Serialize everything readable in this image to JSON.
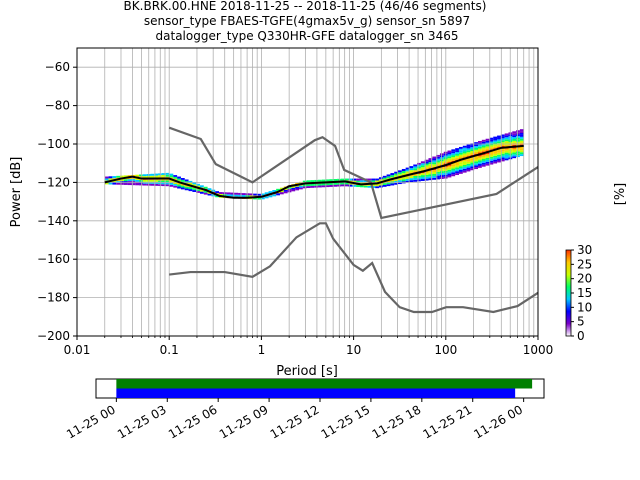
{
  "chart_data": [
    {
      "type": "heatmap",
      "title_lines": [
        "BK.BRK.00.HNE   2018-11-25 -- 2018-11-25  (46/46 segments)",
        "sensor_type FBAES-TGFE(4gmax5v_g) sensor_sn 5897",
        "datalogger_type Q330HR-GFE datalogger_sn 3465"
      ],
      "xlabel": "Period [s]",
      "ylabel": "Power [dB]",
      "x_scale": "log",
      "xlim": [
        0.01,
        1000
      ],
      "ylim": [
        -200,
        -50
      ],
      "x_ticks": [
        {
          "value": 0.01,
          "label": "0.01"
        },
        {
          "value": 0.1,
          "label": "0.1"
        },
        {
          "value": 1,
          "label": "1"
        },
        {
          "value": 10,
          "label": "10"
        },
        {
          "value": 100,
          "label": "100"
        },
        {
          "value": 1000,
          "label": "1000"
        }
      ],
      "y_ticks": [
        {
          "value": -60,
          "label": "−60"
        },
        {
          "value": -80,
          "label": "−80"
        },
        {
          "value": -100,
          "label": "−100"
        },
        {
          "value": -120,
          "label": "−120"
        },
        {
          "value": -140,
          "label": "−140"
        },
        {
          "value": -160,
          "label": "−160"
        },
        {
          "value": -180,
          "label": "−180"
        },
        {
          "value": -200,
          "label": "−200"
        }
      ],
      "grid": true,
      "colorbar": {
        "label": "[%]",
        "range": [
          0,
          30
        ],
        "ticks": [
          {
            "value": 0,
            "label": "0"
          },
          {
            "value": 5,
            "label": "5"
          },
          {
            "value": 10,
            "label": "10"
          },
          {
            "value": 15,
            "label": "15"
          },
          {
            "value": 20,
            "label": "20"
          },
          {
            "value": 25,
            "label": "25"
          },
          {
            "value": 30,
            "label": "30"
          }
        ],
        "colors": [
          "#ffffff",
          "#7b00c8",
          "#0000ff",
          "#00c8ff",
          "#00ff64",
          "#c8ff00",
          "#ffc800",
          "#ff3200"
        ]
      },
      "noise_models": [
        {
          "points": [
            [
              0.1,
              -91.5
            ],
            [
              0.22,
              -97.4
            ],
            [
              0.32,
              -110.5
            ],
            [
              0.8,
              -120
            ],
            [
              3.8,
              -98
            ],
            [
              4.6,
              -96.5
            ],
            [
              6.3,
              -101
            ],
            [
              7.9,
              -113.5
            ],
            [
              15.4,
              -120
            ],
            [
              20,
              -138.5
            ],
            [
              354.8,
              -126
            ],
            [
              1000,
              -112
            ]
          ]
        },
        {
          "points": [
            [
              0.1,
              -168
            ],
            [
              0.17,
              -166.7
            ],
            [
              0.4,
              -166.7
            ],
            [
              0.8,
              -169.2
            ],
            [
              1.24,
              -163.7
            ],
            [
              2.4,
              -148.6
            ],
            [
              4.3,
              -141.3
            ],
            [
              5,
              -141.3
            ],
            [
              6,
              -149.3
            ],
            [
              10,
              -163
            ],
            [
              12.6,
              -166
            ],
            [
              15.9,
              -162
            ],
            [
              21.9,
              -177
            ],
            [
              31.6,
              -185
            ],
            [
              45,
              -187.5
            ],
            [
              70.8,
              -187.5
            ],
            [
              101,
              -185
            ],
            [
              154,
              -185
            ],
            [
              328,
              -187.5
            ],
            [
              600,
              -184.4
            ],
            [
              1000,
              -177.5
            ]
          ]
        }
      ],
      "mode_curve": {
        "points": [
          [
            0.02,
            -120
          ],
          [
            0.03,
            -118
          ],
          [
            0.04,
            -117
          ],
          [
            0.05,
            -118
          ],
          [
            0.07,
            -118
          ],
          [
            0.1,
            -118
          ],
          [
            0.13,
            -120
          ],
          [
            0.18,
            -122
          ],
          [
            0.25,
            -124
          ],
          [
            0.35,
            -127
          ],
          [
            0.5,
            -128
          ],
          [
            0.7,
            -128
          ],
          [
            1,
            -127.5
          ],
          [
            1.5,
            -125
          ],
          [
            2,
            -122
          ],
          [
            3,
            -120.5
          ],
          [
            5,
            -120
          ],
          [
            8,
            -119.5
          ],
          [
            12,
            -121
          ],
          [
            18,
            -120.5
          ],
          [
            25,
            -118.5
          ],
          [
            40,
            -116
          ],
          [
            60,
            -114
          ],
          [
            100,
            -111
          ],
          [
            150,
            -108
          ],
          [
            250,
            -105
          ],
          [
            400,
            -102
          ],
          [
            700,
            -101
          ]
        ]
      },
      "spread_min": [
        [
          0.02,
          -121
        ],
        [
          0.1,
          -122
        ],
        [
          0.35,
          -128
        ],
        [
          1,
          -129
        ],
        [
          3,
          -123
        ],
        [
          8,
          -122
        ],
        [
          18,
          -123
        ],
        [
          40,
          -120
        ],
        [
          100,
          -118
        ],
        [
          250,
          -112
        ],
        [
          700,
          -106
        ]
      ],
      "spread_max": [
        [
          0.02,
          -117
        ],
        [
          0.1,
          -115
        ],
        [
          0.35,
          -125
        ],
        [
          1,
          -126
        ],
        [
          3,
          -119
        ],
        [
          8,
          -118
        ],
        [
          18,
          -118
        ],
        [
          40,
          -112
        ],
        [
          100,
          -104
        ],
        [
          250,
          -98
        ],
        [
          700,
          -92
        ]
      ]
    },
    {
      "type": "timeline",
      "x_ticks": [
        {
          "value": 0,
          "label": "11-25 00"
        },
        {
          "value": 3,
          "label": "11-25 03"
        },
        {
          "value": 6,
          "label": "11-25 06"
        },
        {
          "value": 9,
          "label": "11-25 09"
        },
        {
          "value": 12,
          "label": "11-25 12"
        },
        {
          "value": 15,
          "label": "11-25 15"
        },
        {
          "value": 18,
          "label": "11-25 18"
        },
        {
          "value": 21,
          "label": "11-25 21"
        },
        {
          "value": 24,
          "label": "11-26 00"
        }
      ],
      "xlim_hours": [
        -1.2,
        25.2
      ],
      "bars": [
        {
          "color": "#008000",
          "start_hours": 0,
          "end_hours": 24.5
        },
        {
          "color": "#0000ff",
          "start_hours": 0,
          "end_hours": 23.5
        }
      ]
    }
  ]
}
